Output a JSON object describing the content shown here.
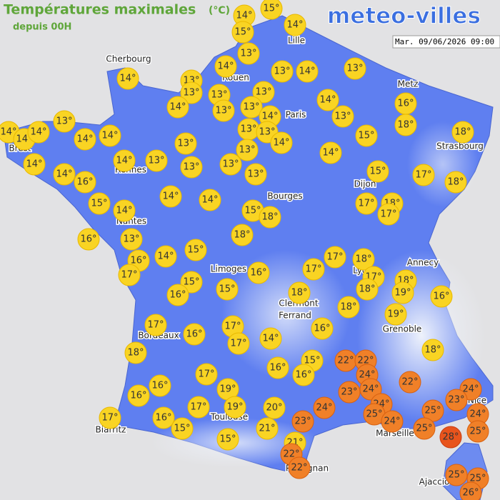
{
  "header": {
    "title": "Températures maximales",
    "unit": "(°C)",
    "subtitle": "depuis 00H"
  },
  "logo": "meteo-villes",
  "timestamp": "Mar. 09/06/2026 09:00",
  "cities": [
    "Cherbourg",
    "Lille",
    "Rouen",
    "Metz",
    "Paris",
    "Brest",
    "Rennes",
    "Strasbourg",
    "Dijon",
    "Bourges",
    "Nantes",
    "Annecy",
    "Limoges",
    "Lyon",
    "Clermont",
    "Ferrand",
    "Grenoble",
    "Bordeaux",
    "Toulouse",
    "Nice",
    "Marseille",
    "Biarritz",
    "Perpignan",
    "Ajaccio"
  ],
  "temperatures": [
    "14°",
    "15°",
    "15°",
    "14°",
    "13°",
    "14°",
    "14°",
    "13°",
    "13°",
    "13°",
    "13°",
    "14°",
    "13°",
    "13°",
    "14°",
    "13°",
    "13°",
    "14°",
    "14°",
    "13°",
    "16°",
    "18°",
    "13°",
    "14°",
    "14°",
    "14°",
    "14°",
    "14°",
    "13°",
    "13°",
    "14°",
    "13°",
    "13°",
    "15°",
    "18°",
    "14°",
    "14°",
    "13°",
    "13°",
    "13°",
    "14°",
    "15°",
    "17°",
    "18°",
    "14°",
    "16°",
    "13°",
    "15°",
    "14°",
    "14°",
    "14°",
    "15°",
    "18°",
    "17°",
    "18°",
    "17°",
    "16°",
    "13°",
    "18°",
    "16°",
    "14°",
    "15°",
    "17°",
    "17°",
    "18°",
    "16°",
    "17°",
    "17°",
    "18°",
    "15°",
    "16°",
    "15°",
    "18°",
    "19°",
    "16°",
    "18°",
    "18°",
    "19°",
    "17°",
    "17°",
    "16°",
    "17°",
    "14°",
    "16°",
    "18°",
    "18°",
    "15°",
    "22°",
    "22°",
    "16°",
    "16°",
    "17°",
    "24°",
    "22°",
    "16°",
    "16°",
    "19°",
    "23°",
    "24°",
    "24°",
    "23°",
    "17°",
    "19°",
    "20°",
    "24°",
    "24°",
    "25°",
    "25°",
    "24°",
    "17°",
    "16°",
    "23°",
    "24°",
    "15°",
    "21°",
    "25°",
    "25°",
    "28°",
    "15°",
    "21°",
    "22°",
    "22°",
    "25°",
    "25°",
    "26°"
  ]
}
